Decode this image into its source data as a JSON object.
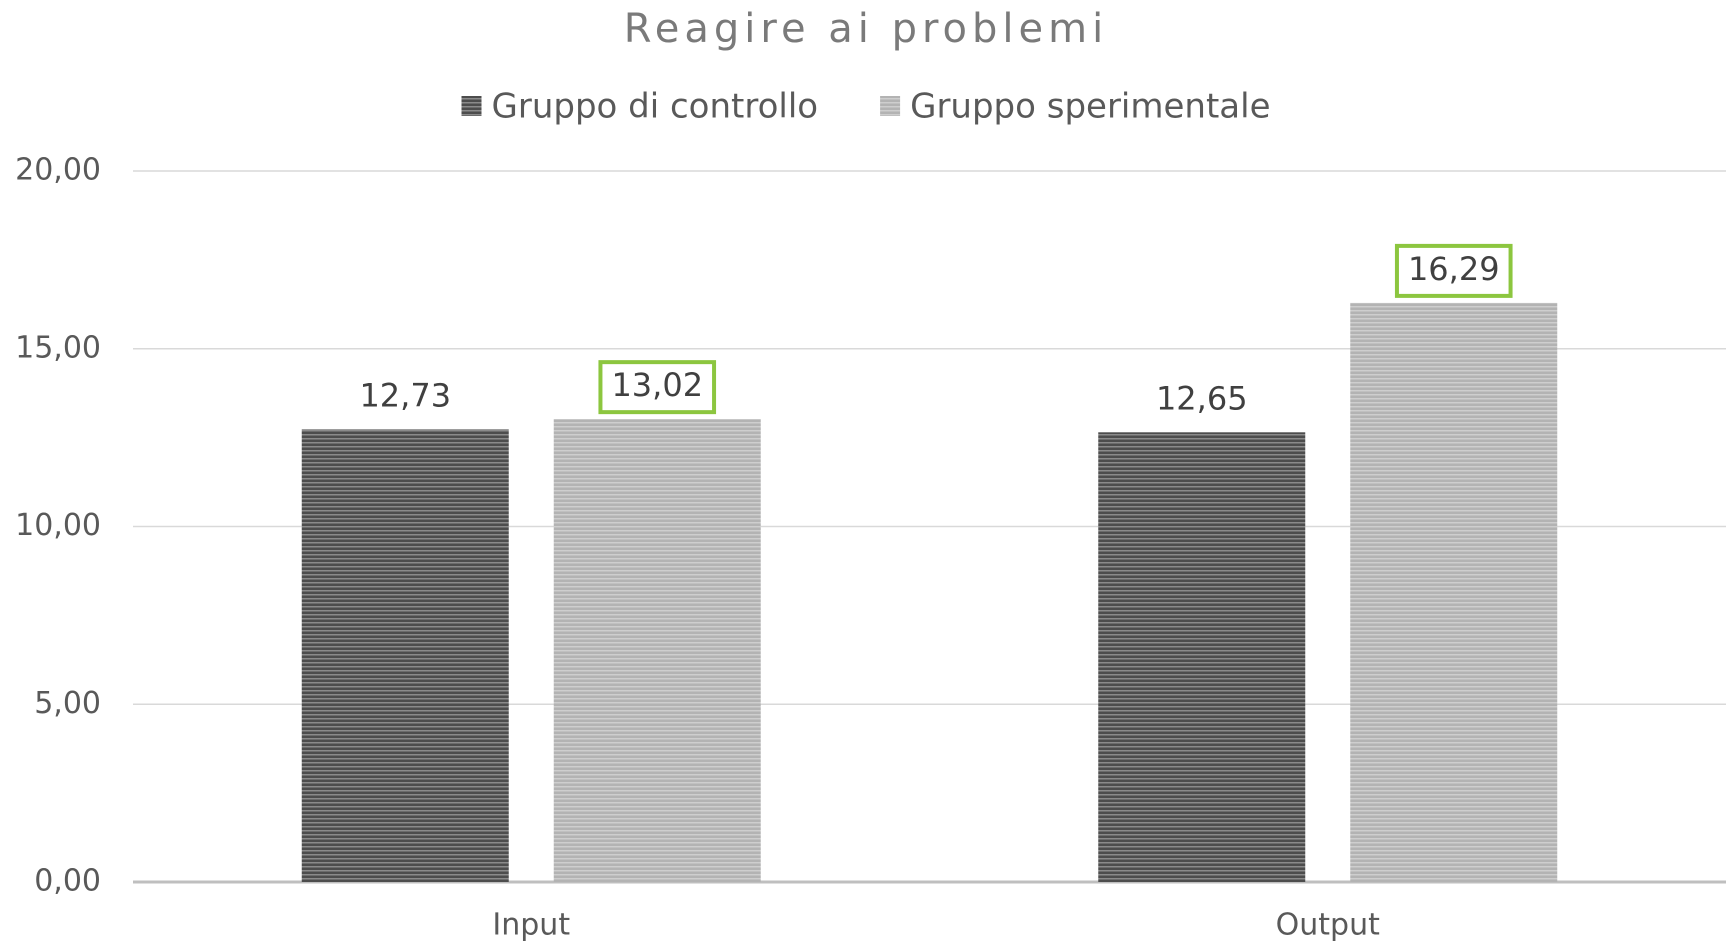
{
  "chart_data": {
    "type": "bar",
    "title": "Reagire ai problemi",
    "categories": [
      "Input",
      "Output"
    ],
    "series": [
      {
        "name": "Gruppo di controllo",
        "color": "#4d4d4d",
        "values": [
          12.73,
          12.65
        ],
        "value_labels": [
          "12,73",
          "12,65"
        ]
      },
      {
        "name": "Gruppo sperimentale",
        "color": "#b3b3b3",
        "values": [
          13.02,
          16.29
        ],
        "value_labels": [
          "13,02",
          "16,29"
        ],
        "label_box_color": "#8cc63f"
      }
    ],
    "ylim": [
      0,
      20
    ],
    "yticks": [
      {
        "value": 0,
        "label": "0,00"
      },
      {
        "value": 5,
        "label": "5,00"
      },
      {
        "value": 10,
        "label": "10,00"
      },
      {
        "value": 15,
        "label": "15,00"
      },
      {
        "value": 20,
        "label": "20,00"
      }
    ],
    "grid": true,
    "legend": "top"
  }
}
